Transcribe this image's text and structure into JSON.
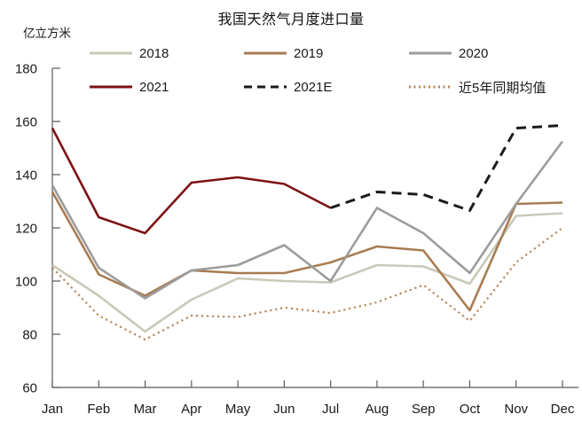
{
  "chart": {
    "title": "我国天然气月度进口量",
    "unit_label": "亿立方米"
  },
  "chart_data": {
    "type": "line",
    "title": "我国天然气月度进口量",
    "ylabel": "亿立方米",
    "xlabel": "",
    "categories": [
      "Jan",
      "Feb",
      "Mar",
      "Apr",
      "May",
      "Jun",
      "Jul",
      "Aug",
      "Sep",
      "Oct",
      "Nov",
      "Dec"
    ],
    "ylim": [
      60,
      180
    ],
    "ytick_step": 20,
    "grid": false,
    "legend_position": "top",
    "axis_color": "#595959",
    "series": [
      {
        "name": "2018",
        "style": "solid",
        "color": "#c9c9b9",
        "values": [
          106,
          94.5,
          81,
          93,
          101,
          100,
          99.5,
          106,
          105.5,
          99,
          124.5,
          125.5
        ]
      },
      {
        "name": "2019",
        "style": "solid",
        "color": "#a87c52",
        "values": [
          133.5,
          102.5,
          94.5,
          104,
          103,
          103,
          107,
          113,
          111.5,
          89,
          129,
          129.5
        ]
      },
      {
        "name": "2020",
        "style": "solid",
        "color": "#9c9c9c",
        "values": [
          136,
          105,
          93.5,
          104,
          106,
          113.5,
          100,
          127.5,
          118,
          103,
          129,
          152.5
        ]
      },
      {
        "name": "2021",
        "style": "solid",
        "color": "#7d1214",
        "values": [
          157.5,
          124,
          118,
          137,
          139,
          136.5,
          127.5,
          null,
          null,
          null,
          null,
          null
        ]
      },
      {
        "name": "2021E",
        "style": "dashed",
        "color": "#1a1a1a",
        "values": [
          null,
          null,
          null,
          null,
          null,
          null,
          127.5,
          133.5,
          132.5,
          126.5,
          157.5,
          158.5
        ]
      },
      {
        "name": "近5年同期均值",
        "style": "dotted",
        "color": "#b6875a",
        "values": [
          105,
          87,
          78,
          87,
          86.5,
          90,
          88,
          92,
          98.5,
          85,
          107,
          120
        ]
      }
    ]
  }
}
